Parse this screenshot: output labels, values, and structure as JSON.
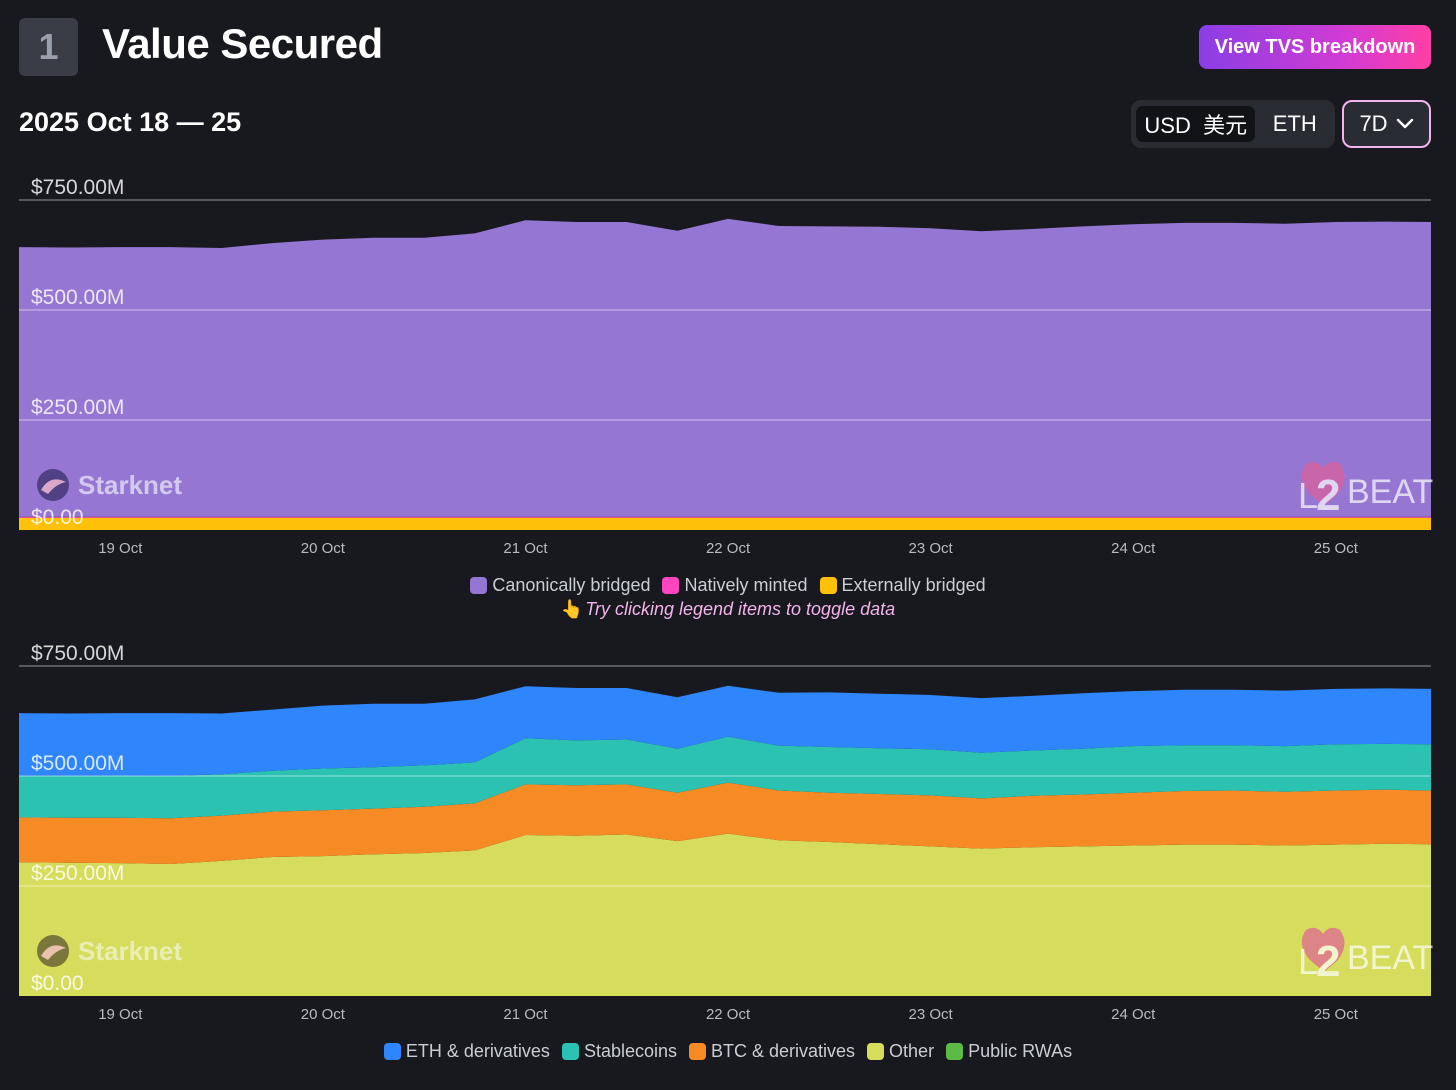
{
  "header": {
    "section_number": "1",
    "title": "Value Secured",
    "breakdown_button": "View TVS breakdown"
  },
  "controls": {
    "date_range": "2025 Oct 18 — 25",
    "currency_active": "USD  美元",
    "currency_inactive": "ETH",
    "range": "7D"
  },
  "hint": "Try clicking legend items to toggle data",
  "watermarks": {
    "project": "Starknet",
    "brand": "BEAT",
    "brand_prefix_l": "L",
    "brand_prefix_2": "2"
  },
  "colors": {
    "canonical": "#9577d3",
    "native": "#ff46c0",
    "external": "#ffc107",
    "eth": "#2f85fb",
    "stable": "#2cc2b2",
    "btc": "#f68a25",
    "other": "#d6dc5c",
    "rwa": "#5dba44"
  },
  "chart_data": [
    {
      "type": "area",
      "stacked": true,
      "ylim": [
        0,
        750
      ],
      "y_ticks": [
        "$0.00",
        "$250.00M",
        "$500.00M",
        "$750.00M"
      ],
      "x_ticks": [
        "19 Oct",
        "20 Oct",
        "21 Oct",
        "22 Oct",
        "23 Oct",
        "24 Oct",
        "25 Oct"
      ],
      "x": [
        0,
        0.25,
        0.5,
        0.75,
        1.0,
        1.25,
        1.5,
        1.75,
        2.0,
        2.25,
        2.5,
        2.75,
        3.0,
        3.25,
        3.5,
        3.75,
        4.0,
        4.25,
        4.5,
        4.75,
        5.0,
        5.25,
        5.5,
        5.75,
        6.0,
        6.25,
        6.5,
        6.75,
        6.97
      ],
      "series": [
        {
          "name": "Externally bridged",
          "color_key": "external",
          "values": [
            28,
            28,
            28,
            28,
            28,
            28,
            28,
            28,
            28,
            28,
            28,
            28,
            28,
            28,
            28,
            28,
            28,
            28,
            28,
            28,
            28,
            28,
            28,
            28,
            28,
            28,
            28,
            28,
            28
          ]
        },
        {
          "name": "Natively minted",
          "color_key": "native",
          "values": [
            2,
            2,
            2,
            2,
            2,
            2,
            2,
            2,
            2,
            2,
            2,
            2,
            2,
            2,
            2,
            2,
            2,
            2,
            2,
            2,
            2,
            2,
            2,
            2,
            2,
            2,
            2,
            2,
            2
          ]
        },
        {
          "name": "Canonically bridged",
          "color_key": "canonical",
          "values": [
            613,
            612,
            613,
            613,
            611,
            622,
            630,
            634,
            634,
            644,
            674,
            670,
            670,
            650,
            677,
            661,
            660,
            659,
            656,
            649,
            654,
            660,
            665,
            668,
            668,
            666,
            670,
            671,
            670
          ]
        }
      ],
      "legend": [
        "Canonically bridged",
        "Natively minted",
        "Externally bridged"
      ]
    },
    {
      "type": "area",
      "stacked": true,
      "ylim": [
        0,
        750
      ],
      "y_ticks": [
        "$0.00",
        "$250.00M",
        "$500.00M",
        "$750.00M"
      ],
      "x_ticks": [
        "19 Oct",
        "20 Oct",
        "21 Oct",
        "22 Oct",
        "23 Oct",
        "24 Oct",
        "25 Oct"
      ],
      "x": [
        0,
        0.25,
        0.5,
        0.75,
        1.0,
        1.25,
        1.5,
        1.75,
        2.0,
        2.25,
        2.5,
        2.75,
        3.0,
        3.25,
        3.5,
        3.75,
        4.0,
        4.25,
        4.5,
        4.75,
        5.0,
        5.25,
        5.5,
        5.75,
        6.0,
        6.25,
        6.5,
        6.75,
        6.97
      ],
      "series": [
        {
          "name": "Public RWAs",
          "color_key": "rwa",
          "values": [
            0,
            0,
            0,
            0,
            0,
            0,
            0,
            0,
            0,
            0,
            0,
            0,
            0,
            0,
            0,
            0,
            0,
            0,
            0,
            0,
            0,
            0,
            0,
            0,
            0,
            0,
            0,
            0,
            0
          ]
        },
        {
          "name": "Other",
          "color_key": "other",
          "values": [
            304,
            303,
            302,
            300,
            307,
            316,
            318,
            322,
            325,
            331,
            366,
            364,
            367,
            352,
            369,
            354,
            350,
            345,
            340,
            335,
            338,
            340,
            342,
            344,
            344,
            342,
            344,
            346,
            345
          ]
        },
        {
          "name": "BTC & derivatives",
          "color_key": "btc",
          "values": [
            102,
            102,
            103,
            104,
            103,
            103,
            104,
            104,
            105,
            107,
            115,
            115,
            114,
            110,
            116,
            113,
            112,
            114,
            116,
            114,
            117,
            118,
            120,
            122,
            123,
            122,
            123,
            123,
            122
          ]
        },
        {
          "name": "Stablecoins",
          "color_key": "stable",
          "values": [
            95,
            95,
            96,
            96,
            94,
            93,
            95,
            94,
            94,
            93,
            105,
            102,
            102,
            100,
            104,
            102,
            104,
            104,
            105,
            104,
            103,
            104,
            106,
            104,
            103,
            104,
            105,
            104,
            105
          ]
        },
        {
          "name": "ETH & derivatives",
          "color_key": "eth",
          "values": [
            142,
            142,
            142,
            143,
            138,
            139,
            143,
            144,
            140,
            143,
            118,
            119,
            117,
            117,
            116,
            120,
            124,
            124,
            123,
            124,
            124,
            126,
            125,
            126,
            126,
            126,
            126,
            126,
            126
          ]
        }
      ],
      "legend": [
        "ETH & derivatives",
        "Stablecoins",
        "BTC & derivatives",
        "Other",
        "Public RWAs"
      ]
    }
  ]
}
